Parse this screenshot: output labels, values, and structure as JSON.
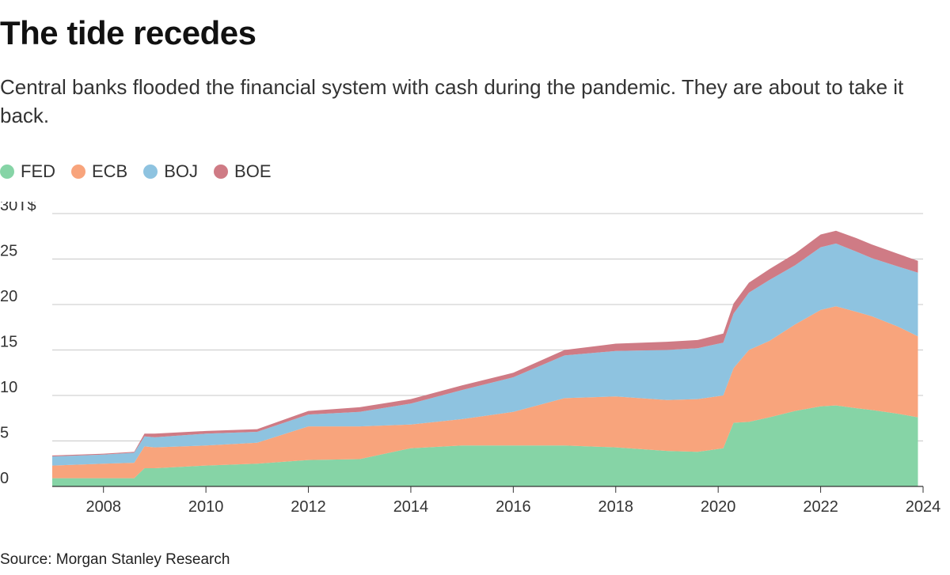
{
  "title": "The tide recedes",
  "subtitle": "Central banks flooded the financial system with cash during the pandemic. They are about to take it back.",
  "source": "Source: Morgan Stanley Research",
  "legend": [
    {
      "label": "FED",
      "color": "#86d4a6"
    },
    {
      "label": "ECB",
      "color": "#f8a47c"
    },
    {
      "label": "BOJ",
      "color": "#8ec3e0"
    },
    {
      "label": "BOE",
      "color": "#cf7b85"
    }
  ],
  "chart_data": {
    "type": "area",
    "stacked": true,
    "grid": true,
    "legend_position": "top-left",
    "xlim": [
      2007,
      2024
    ],
    "ylim": [
      0,
      30
    ],
    "x_ticks": [
      "2008",
      "2010",
      "2012",
      "2014",
      "2016",
      "2018",
      "2020",
      "2022",
      "2024"
    ],
    "y_ticks": [
      "0",
      "5",
      "10",
      "15",
      "20",
      "25",
      "30T$"
    ],
    "x": [
      2007.0,
      2008.0,
      2008.6,
      2008.8,
      2009.0,
      2010.0,
      2011.0,
      2012.0,
      2013.0,
      2014.0,
      2015.0,
      2016.0,
      2017.0,
      2018.0,
      2019.0,
      2019.6,
      2020.1,
      2020.3,
      2020.6,
      2021.0,
      2021.5,
      2022.0,
      2022.3,
      2022.7,
      2023.0,
      2023.5,
      2023.9
    ],
    "series": [
      {
        "name": "FED",
        "color": "#86d4a6",
        "values": [
          0.9,
          0.9,
          0.9,
          2.0,
          2.0,
          2.3,
          2.5,
          2.9,
          3.0,
          4.2,
          4.5,
          4.5,
          4.5,
          4.3,
          3.9,
          3.8,
          4.2,
          7.0,
          7.1,
          7.6,
          8.3,
          8.8,
          8.9,
          8.6,
          8.4,
          8.0,
          7.6
        ]
      },
      {
        "name": "ECB",
        "color": "#f8a47c",
        "values": [
          1.4,
          1.6,
          1.7,
          2.4,
          2.3,
          2.2,
          2.3,
          3.7,
          3.6,
          2.6,
          2.9,
          3.7,
          5.2,
          5.6,
          5.6,
          5.8,
          5.8,
          6.0,
          7.9,
          8.4,
          9.5,
          10.6,
          10.9,
          10.6,
          10.3,
          9.6,
          8.9
        ]
      },
      {
        "name": "BOJ",
        "color": "#8ec3e0",
        "values": [
          1.0,
          1.0,
          1.1,
          1.1,
          1.1,
          1.3,
          1.2,
          1.3,
          1.6,
          2.3,
          3.2,
          3.8,
          4.7,
          5.0,
          5.5,
          5.6,
          5.8,
          6.0,
          6.3,
          6.7,
          6.5,
          6.9,
          6.9,
          6.6,
          6.4,
          6.6,
          7.0
        ]
      },
      {
        "name": "BOE",
        "color": "#cf7b85",
        "values": [
          0.1,
          0.1,
          0.1,
          0.3,
          0.4,
          0.3,
          0.3,
          0.4,
          0.5,
          0.5,
          0.5,
          0.5,
          0.6,
          0.8,
          0.9,
          0.9,
          1.0,
          1.1,
          1.1,
          1.2,
          1.3,
          1.4,
          1.4,
          1.5,
          1.5,
          1.4,
          1.3
        ]
      }
    ]
  }
}
